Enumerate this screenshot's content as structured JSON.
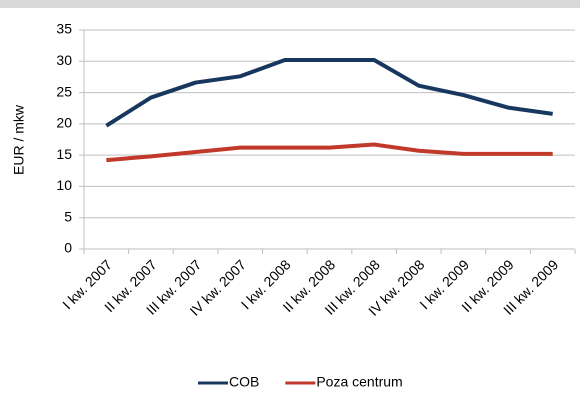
{
  "chart_data": {
    "type": "line",
    "y_label": "EUR / mkw",
    "categories": [
      "I kw. 2007",
      "II kw. 2007",
      "III kw. 2007",
      "IV kw. 2007",
      "I kw. 2008",
      "II kw. 2008",
      "III kw. 2008",
      "IV kw. 2008",
      "I kw. 2009",
      "II kw. 2009",
      "III kw. 2009"
    ],
    "series": [
      {
        "name": "COB",
        "color": "#17375e",
        "values": [
          19.7,
          24.2,
          26.6,
          27.6,
          30.2,
          30.2,
          30.2,
          26.1,
          24.6,
          22.6,
          21.6
        ]
      },
      {
        "name": "Poza centrum",
        "color": "#c0392b",
        "values": [
          14.2,
          14.8,
          15.5,
          16.2,
          16.2,
          16.2,
          16.7,
          15.7,
          15.2,
          15.2,
          15.2
        ]
      }
    ],
    "ylim": [
      0,
      35
    ],
    "yticks": [
      0,
      5,
      10,
      15,
      20,
      25,
      30,
      35
    ],
    "grid": true,
    "legend": "bottom"
  }
}
